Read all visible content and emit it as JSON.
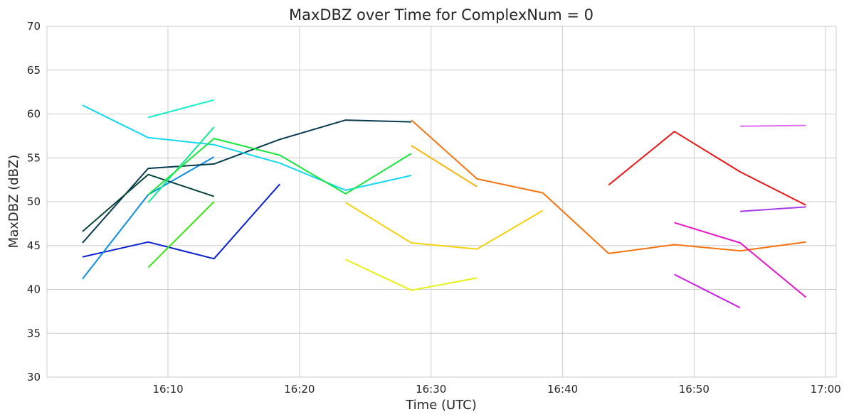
{
  "chart_data": {
    "type": "line",
    "title": "MaxDBZ over Time for ComplexNum = 0",
    "xlabel": "Time (UTC)",
    "ylabel": "MaxDBZ (dBZ)",
    "ylim": [
      30,
      70
    ],
    "xlim": [
      "16:00:48",
      "17:00:48"
    ],
    "grid": true,
    "x_ticks": [
      "16:10",
      "16:20",
      "16:30",
      "16:40",
      "16:50",
      "17:00"
    ],
    "y_ticks": [
      30,
      35,
      40,
      45,
      50,
      55,
      60,
      65,
      70
    ],
    "series": [
      {
        "color": "#0a1fd8",
        "x": [
          "16:03:30",
          "16:08:30",
          "16:13:30",
          "16:18:30"
        ],
        "y": [
          43.7,
          45.4,
          43.5,
          52.0
        ]
      },
      {
        "color": "#0a8ee8",
        "x": [
          "16:03:30",
          "16:08:30",
          "16:13:30"
        ],
        "y": [
          41.2,
          50.8,
          55.1
        ]
      },
      {
        "color": "#073a4f",
        "x": [
          "16:03:30",
          "16:08:30",
          "16:13:30",
          "16:18:30",
          "16:23:30",
          "16:28:30"
        ],
        "y": [
          45.3,
          53.8,
          54.3,
          57.1,
          59.3,
          59.1
        ]
      },
      {
        "color": "#06443a",
        "x": [
          "16:03:30",
          "16:08:30",
          "16:13:30"
        ],
        "y": [
          46.6,
          53.1,
          50.6
        ]
      },
      {
        "color": "#14d8f2",
        "x": [
          "16:03:30",
          "16:08:30",
          "16:13:30",
          "16:18:30",
          "16:23:30",
          "16:28:30"
        ],
        "y": [
          61.0,
          57.3,
          56.5,
          54.4,
          51.3,
          53.0
        ]
      },
      {
        "color": "#14f0c8",
        "x": [
          "16:08:30",
          "16:13:30"
        ],
        "y": [
          59.6,
          61.6
        ]
      },
      {
        "color": "#14e890",
        "x": [
          "16:08:30",
          "16:13:30"
        ],
        "y": [
          49.9,
          58.5
        ]
      },
      {
        "color": "#19e83c",
        "x": [
          "16:08:30",
          "16:13:30",
          "16:18:30",
          "16:23:30",
          "16:28:30"
        ],
        "y": [
          50.8,
          57.2,
          55.3,
          50.9,
          55.5
        ]
      },
      {
        "color": "#3ce414",
        "x": [
          "16:08:30",
          "16:13:30"
        ],
        "y": [
          42.5,
          50.0
        ]
      },
      {
        "color": "#e8f014",
        "x": [
          "16:23:30",
          "16:28:30",
          "16:33:30"
        ],
        "y": [
          43.4,
          39.9,
          41.3
        ]
      },
      {
        "color": "#f5d10f",
        "x": [
          "16:23:30",
          "16:28:30",
          "16:33:30",
          "16:38:30"
        ],
        "y": [
          49.9,
          45.3,
          44.6,
          49.0
        ]
      },
      {
        "color": "#f7b70f",
        "x": [
          "16:28:30",
          "16:33:30"
        ],
        "y": [
          56.4,
          51.7
        ]
      },
      {
        "color": "#f7730f",
        "x": [
          "16:28:30",
          "16:33:30",
          "16:38:30",
          "16:43:30",
          "16:48:30",
          "16:53:30",
          "16:58:30"
        ],
        "y": [
          59.3,
          52.6,
          51.0,
          44.1,
          45.1,
          44.4,
          45.4
        ]
      },
      {
        "color": "#f01414",
        "x": [
          "16:43:30",
          "16:48:30",
          "16:53:30",
          "16:58:30"
        ],
        "y": [
          51.9,
          58.0,
          53.4,
          49.6
        ]
      },
      {
        "color": "#e814c8",
        "x": [
          "16:48:30",
          "16:53:30",
          "16:58:30"
        ],
        "y": [
          47.6,
          45.3,
          39.1
        ]
      },
      {
        "color": "#c81ce8",
        "x": [
          "16:48:30",
          "16:53:30"
        ],
        "y": [
          41.7,
          37.9
        ]
      },
      {
        "color": "#a83ce8",
        "x": [
          "16:53:30",
          "16:58:30"
        ],
        "y": [
          48.9,
          49.4
        ]
      },
      {
        "color": "#e06cf0",
        "x": [
          "16:53:30",
          "16:58:30"
        ],
        "y": [
          58.6,
          58.7
        ]
      }
    ]
  }
}
